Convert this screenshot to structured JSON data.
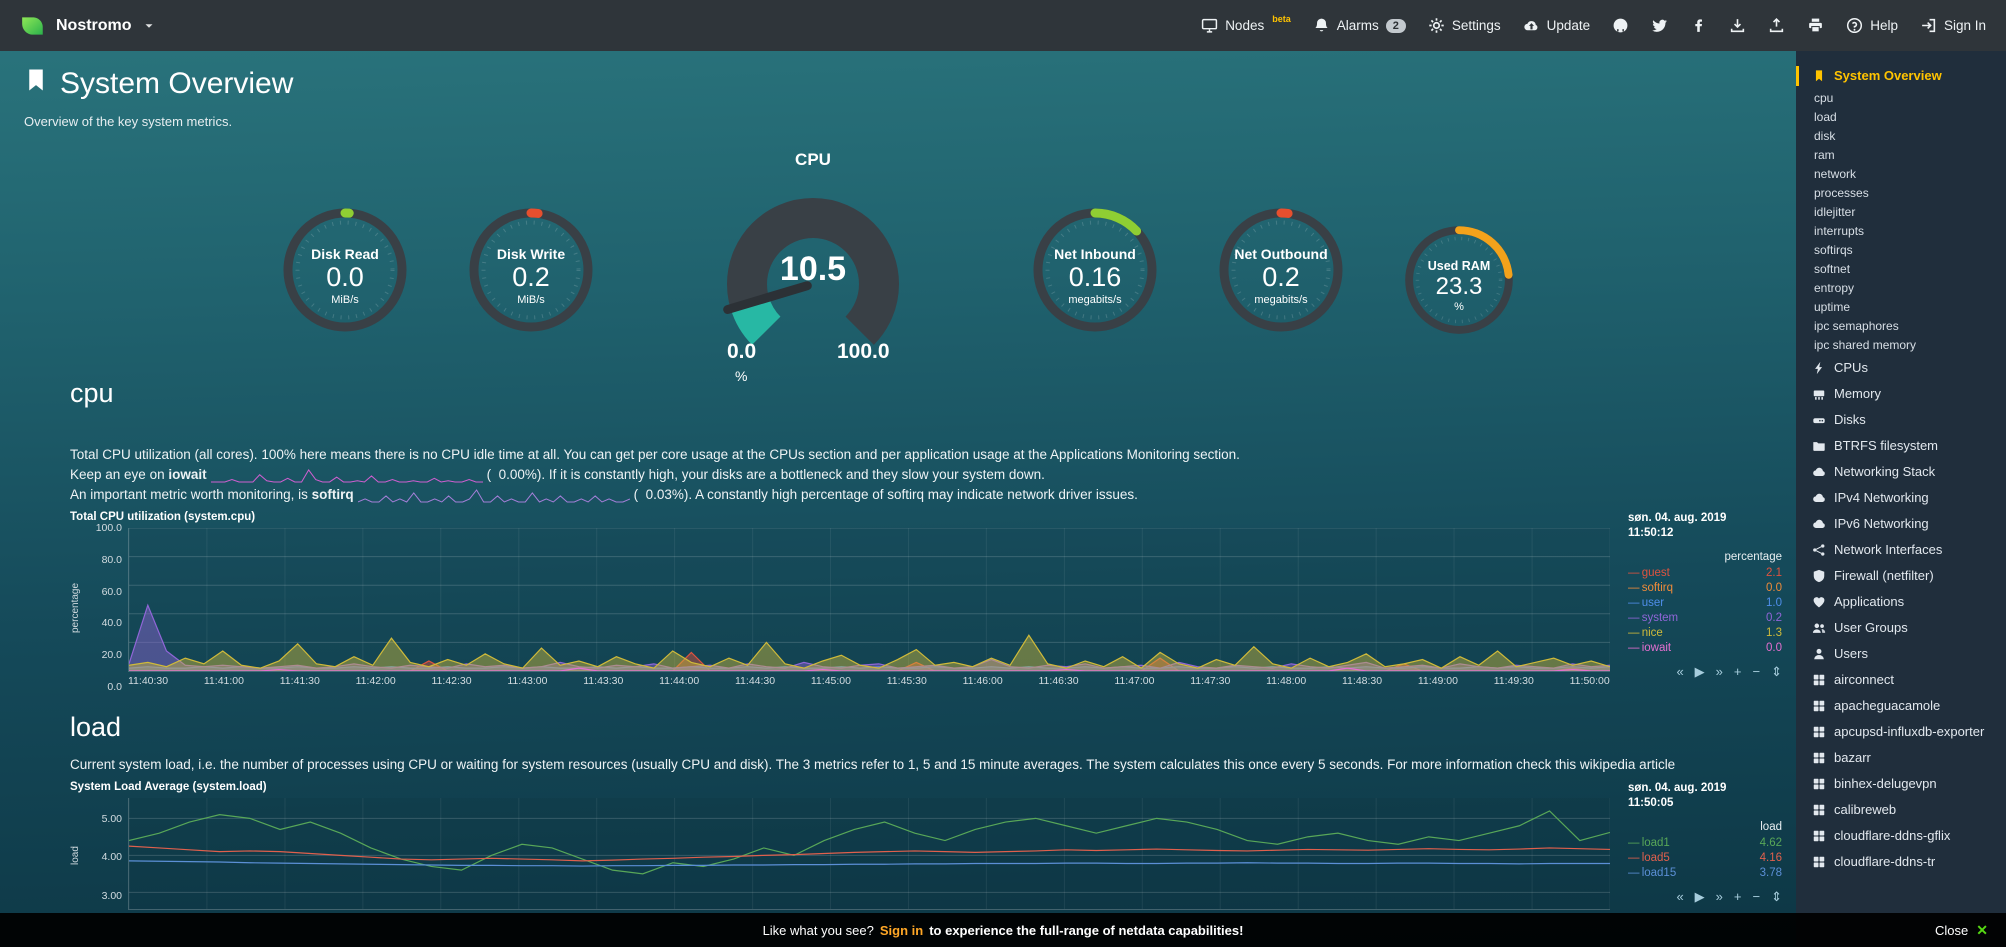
{
  "topbar": {
    "brand": "Nostromo",
    "nodes": {
      "label": "Nodes",
      "beta": "beta"
    },
    "alarms": {
      "label": "Alarms",
      "badge": "2"
    },
    "settings": "Settings",
    "update": "Update",
    "help": "Help",
    "signin": "Sign In"
  },
  "header": {
    "title": "System Overview",
    "subtitle": "Overview of the key system metrics."
  },
  "gauges": [
    {
      "type": "pie",
      "label": "Disk Read",
      "value": "0.0",
      "unit": "MiB/s",
      "color": "#8fce33",
      "fraction": 0.012
    },
    {
      "type": "pie",
      "label": "Disk Write",
      "value": "0.2",
      "unit": "MiB/s",
      "color": "#e64f2e",
      "fraction": 0.02
    },
    {
      "type": "gauge",
      "label": "CPU",
      "value": "10.5",
      "min": "0.0",
      "max": "100.0",
      "unit": "%",
      "color": "#27b8a4",
      "fraction": 0.105
    },
    {
      "type": "pie",
      "label": "Net Inbound",
      "value": "0.16",
      "unit": "megabits/s",
      "color": "#8fce33",
      "fraction": 0.13
    },
    {
      "type": "pie",
      "label": "Net Outbound",
      "value": "0.2",
      "unit": "megabits/s",
      "color": "#e64f2e",
      "fraction": 0.02
    },
    {
      "type": "pie",
      "label": "Used RAM",
      "value": "23.3",
      "unit": "%",
      "color": "#f3a21b",
      "fraction": 0.233,
      "small": true
    }
  ],
  "cpu_section": {
    "heading": "cpu",
    "desc1": "Total CPU utilization (all cores). 100% here means there is no CPU idle time at all. You can get per core usage at the CPUs section and per application usage at the Applications Monitoring section.",
    "line2": {
      "pre": "Keep an eye on ",
      "keyword": "iowait",
      "post": "(  0.00%). If it is constantly high, your disks are a bottleneck and they slow your system down."
    },
    "spark1": {
      "color": "#cf5fd0",
      "values": [
        0,
        0,
        0,
        0.2,
        0,
        0,
        0,
        0.6,
        0.1,
        0,
        0,
        0.3,
        0,
        0,
        1,
        0.2,
        0,
        0,
        0.4,
        0,
        0,
        0.1,
        0,
        0.5,
        0,
        0,
        0.2,
        0,
        0,
        0.1,
        0,
        0,
        0.3,
        0,
        0.1,
        0,
        0,
        0.2,
        0,
        0
      ]
    },
    "line3": {
      "pre": "An important metric worth monitoring, is ",
      "keyword": "softirq",
      "post": "(  0.03%). A constantly high percentage of softirq may indicate network driver issues."
    },
    "spark2": {
      "color": "#a47fd8",
      "values": [
        0,
        0.1,
        0,
        0,
        0.2,
        0,
        0.1,
        0,
        0.3,
        0,
        0,
        0.1,
        0,
        0.2,
        0,
        0,
        0.1,
        0.4,
        0,
        0,
        0.2,
        0,
        0.1,
        0,
        0,
        0.3,
        0,
        0.1,
        0,
        0.2,
        0,
        0,
        0.1,
        0,
        0.2,
        0,
        0.1,
        0,
        0,
        0.1
      ]
    }
  },
  "load_section": {
    "heading": "load",
    "desc": "Current system load, i.e. the number of processes using CPU or waiting for system resources (usually CPU and disk). The 3 metrics refer to 1, 5 and 15 minute averages. The system calculates this once every 5 seconds. For more information check this wikipedia article"
  },
  "chart_data": [
    {
      "id": "cpu",
      "type": "area",
      "title": "Total CPU utilization (system.cpu)",
      "date": "søn. 04. aug. 2019",
      "time": "11:50:12",
      "units_header": "percentage",
      "ylabel": "percentage",
      "ylim": [
        0,
        100
      ],
      "yticks": [
        {
          "v": 0,
          "label": "0.0"
        },
        {
          "v": 20,
          "label": "20.0"
        },
        {
          "v": 40,
          "label": "40.0"
        },
        {
          "v": 60,
          "label": "60.0"
        },
        {
          "v": 80,
          "label": "80.0"
        },
        {
          "v": 100,
          "label": "100.0"
        }
      ],
      "xticks": [
        "11:40:30",
        "11:41:00",
        "11:41:30",
        "11:42:00",
        "11:42:30",
        "11:43:00",
        "11:43:30",
        "11:44:00",
        "11:44:30",
        "11:45:00",
        "11:45:30",
        "11:46:00",
        "11:46:30",
        "11:47:00",
        "11:47:30",
        "11:48:00",
        "11:48:30",
        "11:49:00",
        "11:49:30",
        "11:50:00"
      ],
      "series": [
        {
          "name": "guest",
          "value": "2.1",
          "color": "#e0533f",
          "fill": true,
          "values": [
            0,
            0,
            0,
            0,
            0,
            0,
            0,
            0,
            0,
            0,
            0,
            0,
            0,
            0,
            0,
            0,
            7,
            0,
            0,
            0,
            0,
            0,
            0,
            0,
            0,
            0,
            0,
            0,
            0,
            0,
            13,
            0,
            0,
            0,
            0,
            0,
            0,
            0,
            0,
            0,
            0,
            0,
            6,
            0,
            0,
            0,
            0,
            0,
            0,
            0,
            0,
            0,
            0,
            0,
            0,
            9,
            0,
            0,
            0,
            0,
            0,
            0,
            0,
            0,
            0,
            0,
            0,
            0,
            5,
            0,
            0,
            0,
            0,
            0,
            0,
            0,
            0,
            2,
            0,
            0
          ]
        },
        {
          "name": "softirq",
          "value": "0.0",
          "color": "#ef8b3a",
          "fill": false,
          "values": [
            0,
            0,
            0,
            0,
            0,
            0,
            0,
            0,
            0,
            0,
            0,
            0,
            0,
            0,
            0,
            0,
            0,
            0,
            0,
            0,
            0,
            0,
            0,
            0,
            0,
            0,
            0,
            0,
            0,
            0,
            0,
            0,
            0,
            0,
            0,
            0,
            0,
            0,
            0,
            0,
            0,
            0,
            0,
            0,
            0,
            0,
            0,
            0,
            0,
            0,
            0,
            0,
            0,
            0,
            0,
            0,
            0,
            0,
            0,
            0,
            0,
            0,
            0,
            0,
            0,
            0,
            0,
            0,
            0,
            0,
            0,
            0,
            0,
            0,
            0,
            0,
            0,
            0,
            0,
            0
          ]
        },
        {
          "name": "user",
          "value": "1.0",
          "color": "#4f8eea",
          "fill": true,
          "values": [
            2,
            3,
            2,
            2,
            3,
            2,
            3,
            2,
            2,
            3,
            2,
            2,
            3,
            2,
            3,
            2,
            2,
            3,
            2,
            2,
            3,
            2,
            3,
            2,
            2,
            3,
            2,
            3,
            2,
            2,
            3,
            2,
            2,
            3,
            2,
            3,
            2,
            2,
            3,
            2,
            3,
            2,
            2,
            3,
            2,
            2,
            3,
            2,
            3,
            2,
            2,
            3,
            2,
            3,
            2,
            2,
            3,
            2,
            2,
            3,
            2,
            3,
            2,
            2,
            3,
            2,
            3,
            2,
            2,
            3,
            2,
            2,
            3,
            2,
            3,
            2,
            2,
            3,
            2,
            3
          ]
        },
        {
          "name": "system",
          "value": "0.2",
          "color": "#9066d8",
          "fill": true,
          "values": [
            5,
            46,
            14,
            4,
            3,
            4,
            3,
            2,
            3,
            4,
            2,
            3,
            5,
            3,
            2,
            4,
            3,
            2,
            5,
            3,
            4,
            2,
            3,
            6,
            3,
            2,
            4,
            3,
            5,
            2,
            3,
            4,
            2,
            5,
            3,
            2,
            6,
            3,
            2,
            4,
            5,
            2,
            3,
            4,
            2,
            3,
            8,
            3,
            2,
            4,
            3,
            5,
            2,
            3,
            4,
            2,
            6,
            3,
            2,
            4,
            3,
            2,
            5,
            3,
            2,
            4,
            6,
            2,
            3,
            4,
            2,
            5,
            3,
            2,
            4,
            3,
            2,
            5,
            3,
            4
          ]
        },
        {
          "name": "nice",
          "value": "1.3",
          "color": "#cfba3a",
          "fill": true,
          "values": [
            4,
            6,
            3,
            9,
            5,
            14,
            4,
            2,
            7,
            19,
            5,
            3,
            10,
            4,
            23,
            6,
            3,
            8,
            4,
            12,
            5,
            2,
            16,
            4,
            7,
            3,
            10,
            5,
            2,
            14,
            6,
            3,
            9,
            4,
            20,
            5,
            2,
            7,
            11,
            4,
            2,
            8,
            15,
            4,
            6,
            3,
            9,
            4,
            25,
            5,
            2,
            7,
            3,
            10,
            2,
            13,
            5,
            2,
            8,
            4,
            17,
            5,
            2,
            9,
            3,
            6,
            12,
            3,
            5,
            8,
            2,
            10,
            4,
            14,
            3,
            6,
            9,
            4,
            7,
            3
          ]
        },
        {
          "name": "iowait",
          "value": "0.0",
          "color": "#e46fd0",
          "fill": false,
          "values": [
            0,
            0,
            0,
            0,
            0,
            0,
            0,
            0,
            1,
            0,
            0,
            0,
            0,
            0,
            0,
            0,
            0,
            0,
            0,
            0,
            0,
            0,
            0,
            0,
            2,
            0,
            0,
            0,
            0,
            0,
            0,
            0,
            0,
            0,
            0,
            0,
            0,
            1,
            0,
            0,
            0,
            0,
            0,
            0,
            0,
            0,
            0,
            0,
            0,
            0,
            1,
            0,
            0,
            0,
            0,
            0,
            0,
            0,
            0,
            0,
            0,
            0,
            0,
            0,
            0,
            2,
            0,
            0,
            0,
            0,
            0,
            0,
            0,
            0,
            0,
            0,
            0,
            1,
            0,
            0
          ]
        }
      ]
    },
    {
      "id": "load",
      "type": "line",
      "title": "System Load Average (system.load)",
      "date": "søn. 04. aug. 2019",
      "time": "11:50:05",
      "units_header": "load",
      "ylabel": "load",
      "ylim": [
        2.55,
        5.55
      ],
      "yticks": [
        {
          "v": 3,
          "label": "3.00"
        },
        {
          "v": 4,
          "label": "4.00"
        },
        {
          "v": 5,
          "label": "5.00"
        }
      ],
      "xticks": [],
      "xgrid": 20,
      "series": [
        {
          "name": "load1",
          "value": "4.62",
          "color": "#58a758",
          "fill": false,
          "values": [
            4.4,
            4.6,
            4.9,
            5.1,
            5.0,
            4.7,
            4.9,
            4.6,
            4.2,
            3.9,
            3.7,
            3.6,
            4.0,
            4.3,
            4.2,
            3.9,
            3.6,
            3.5,
            3.8,
            3.7,
            3.9,
            4.2,
            4.0,
            4.4,
            4.7,
            4.9,
            4.6,
            4.4,
            4.7,
            4.9,
            5.0,
            4.8,
            4.6,
            4.8,
            5.0,
            4.9,
            4.7,
            4.4,
            4.3,
            4.5,
            4.6,
            4.4,
            4.3,
            4.5,
            4.4,
            4.6,
            4.8,
            5.2,
            4.4,
            4.62
          ]
        },
        {
          "name": "load5",
          "value": "4.16",
          "color": "#e0604d",
          "fill": false,
          "values": [
            4.25,
            4.2,
            4.15,
            4.1,
            4.12,
            4.1,
            4.05,
            4.0,
            3.95,
            3.9,
            3.88,
            3.9,
            3.92,
            3.9,
            3.88,
            3.85,
            3.87,
            3.9,
            3.92,
            3.95,
            3.97,
            4.0,
            4.02,
            4.05,
            4.08,
            4.1,
            4.12,
            4.1,
            4.08,
            4.1,
            4.12,
            4.15,
            4.13,
            4.15,
            4.17,
            4.15,
            4.13,
            4.12,
            4.14,
            4.16,
            4.15,
            4.14,
            4.16,
            4.18,
            4.16,
            4.15,
            4.17,
            4.2,
            4.18,
            4.16
          ]
        },
        {
          "name": "load15",
          "value": "3.78",
          "color": "#5b8fd6",
          "fill": false,
          "values": [
            3.85,
            3.84,
            3.83,
            3.82,
            3.8,
            3.79,
            3.78,
            3.77,
            3.76,
            3.75,
            3.74,
            3.73,
            3.73,
            3.72,
            3.72,
            3.71,
            3.72,
            3.72,
            3.73,
            3.73,
            3.74,
            3.74,
            3.75,
            3.75,
            3.76,
            3.76,
            3.77,
            3.77,
            3.78,
            3.78,
            3.78,
            3.79,
            3.79,
            3.78,
            3.78,
            3.79,
            3.79,
            3.8,
            3.79,
            3.79,
            3.78,
            3.78,
            3.79,
            3.79,
            3.78,
            3.78,
            3.77,
            3.78,
            3.78,
            3.78
          ]
        }
      ]
    }
  ],
  "toolbox": [
    {
      "name": "pan-backward-icon",
      "glyph": "«"
    },
    {
      "name": "play-icon",
      "glyph": "▶"
    },
    {
      "name": "pan-forward-icon",
      "glyph": "»"
    },
    {
      "name": "zoom-in-icon",
      "glyph": "+"
    },
    {
      "name": "zoom-out-icon",
      "glyph": "−"
    },
    {
      "name": "resize-icon",
      "glyph": "⇕"
    }
  ],
  "sidebar": {
    "items": [
      {
        "label": "System Overview",
        "icon": "bookmark-icon",
        "active": true,
        "children": [
          "cpu",
          "load",
          "disk",
          "ram",
          "network",
          "processes",
          "idlejitter",
          "interrupts",
          "softirqs",
          "softnet",
          "entropy",
          "uptime",
          "ipc semaphores",
          "ipc shared memory"
        ]
      },
      {
        "label": "CPUs",
        "icon": "bolt-icon"
      },
      {
        "label": "Memory",
        "icon": "memory-icon"
      },
      {
        "label": "Disks",
        "icon": "hdd-icon"
      },
      {
        "label": "BTRFS filesystem",
        "icon": "folder-icon"
      },
      {
        "label": "Networking Stack",
        "icon": "cloud-icon"
      },
      {
        "label": "IPv4 Networking",
        "icon": "cloud-icon"
      },
      {
        "label": "IPv6 Networking",
        "icon": "cloud-icon"
      },
      {
        "label": "Network Interfaces",
        "icon": "network-icon"
      },
      {
        "label": "Firewall (netfilter)",
        "icon": "shield-icon"
      },
      {
        "label": "Applications",
        "icon": "heart-icon"
      },
      {
        "label": "User Groups",
        "icon": "users-icon"
      },
      {
        "label": "Users",
        "icon": "user-icon"
      },
      {
        "label": "airconnect",
        "icon": "grid-icon"
      },
      {
        "label": "apacheguacamole",
        "icon": "grid-icon"
      },
      {
        "label": "apcupsd-influxdb-exporter",
        "icon": "grid-icon"
      },
      {
        "label": "bazarr",
        "icon": "grid-icon"
      },
      {
        "label": "binhex-delugevpn",
        "icon": "grid-icon"
      },
      {
        "label": "calibreweb",
        "icon": "grid-icon"
      },
      {
        "label": "cloudflare-ddns-gflix",
        "icon": "grid-icon"
      },
      {
        "label": "cloudflare-ddns-tr",
        "icon": "grid-icon"
      }
    ]
  },
  "bottom_bar": {
    "pre": "Like what you see?",
    "link": "Sign in",
    "post": "to experience the full-range of netdata capabilities!",
    "close": "Close",
    "close_icon": "✕"
  }
}
